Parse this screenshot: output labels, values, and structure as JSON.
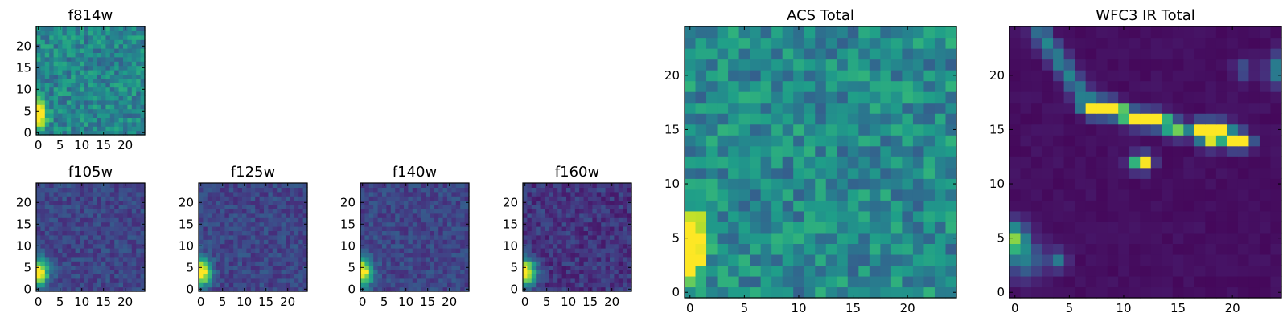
{
  "figure": {
    "background": "#ffffff"
  },
  "colormap": {
    "name": "viridis",
    "stops": [
      "#440154",
      "#482878",
      "#3e4989",
      "#31688e",
      "#26828e",
      "#1f9e89",
      "#35b779",
      "#6ece58",
      "#b5de2b",
      "#fde725"
    ]
  },
  "chart_data": [
    {
      "type": "heatmap",
      "title": "f814w",
      "xticks": [
        "0",
        "5",
        "10",
        "15",
        "20"
      ],
      "yticks": [
        "0",
        "5",
        "10",
        "15",
        "20"
      ],
      "xlim": [
        -0.5,
        24.5
      ],
      "ylim": [
        -0.5,
        24.5
      ],
      "grid": false,
      "peaks": [
        {
          "x": 0,
          "y": 4,
          "value": 1.0,
          "note": "bright source at lower-left edge"
        }
      ]
    },
    {
      "type": "heatmap",
      "title": "f105w",
      "xticks": [
        "0",
        "5",
        "10",
        "15",
        "20"
      ],
      "yticks": [
        "0",
        "5",
        "10",
        "15",
        "20"
      ],
      "xlim": [
        -0.5,
        24.5
      ],
      "ylim": [
        -0.5,
        24.5
      ],
      "grid": false
    },
    {
      "type": "heatmap",
      "title": "f125w",
      "xticks": [
        "0",
        "5",
        "10",
        "15",
        "20"
      ],
      "yticks": [
        "0",
        "5",
        "10",
        "15",
        "20"
      ],
      "xlim": [
        -0.5,
        24.5
      ],
      "ylim": [
        -0.5,
        24.5
      ],
      "grid": false
    },
    {
      "type": "heatmap",
      "title": "f140w",
      "xticks": [
        "0",
        "5",
        "10",
        "15",
        "20"
      ],
      "yticks": [
        "0",
        "5",
        "10",
        "15",
        "20"
      ],
      "xlim": [
        -0.5,
        24.5
      ],
      "ylim": [
        -0.5,
        24.5
      ],
      "grid": false
    },
    {
      "type": "heatmap",
      "title": "f160w",
      "xticks": [
        "0",
        "5",
        "10",
        "15",
        "20"
      ],
      "yticks": [
        "0",
        "5",
        "10",
        "15",
        "20"
      ],
      "xlim": [
        -0.5,
        24.5
      ],
      "ylim": [
        -0.5,
        24.5
      ],
      "grid": false
    },
    {
      "type": "heatmap",
      "title": "ACS Total",
      "xticks": [
        "0",
        "5",
        "10",
        "15",
        "20"
      ],
      "yticks": [
        "0",
        "5",
        "10",
        "15",
        "20"
      ],
      "xlim": [
        -0.5,
        24.5
      ],
      "ylim": [
        -0.5,
        24.5
      ],
      "grid": false
    },
    {
      "type": "heatmap",
      "title": "WFC3 IR Total",
      "xticks": [
        "0",
        "5",
        "10",
        "15",
        "20"
      ],
      "yticks": [
        "0",
        "5",
        "10",
        "15",
        "20"
      ],
      "xlim": [
        -0.5,
        24.5
      ],
      "ylim": [
        -0.5,
        24.5
      ],
      "grid": false
    }
  ]
}
